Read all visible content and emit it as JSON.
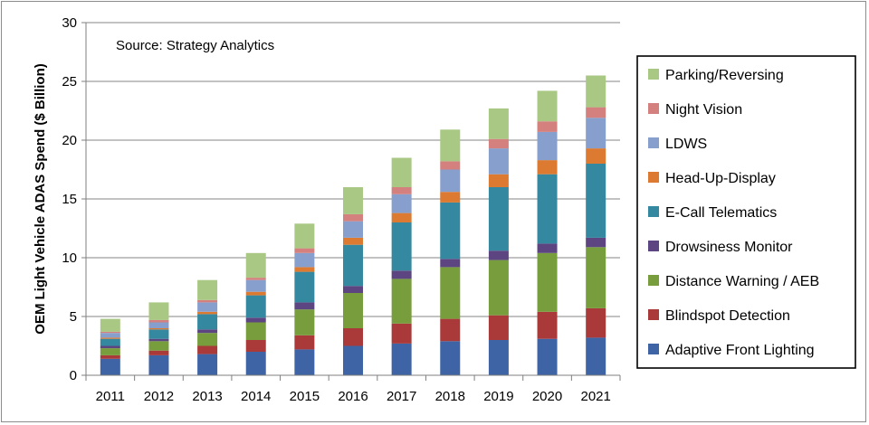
{
  "chart_data": {
    "type": "bar",
    "stacked": true,
    "annotation": "Source: Strategy Analytics",
    "xlabel": "",
    "ylabel": "OEM Light Vehicle ADAS Spend ($ Billion)",
    "ylim": [
      0,
      30
    ],
    "yticks": [
      0,
      5,
      10,
      15,
      20,
      25,
      30
    ],
    "grid": true,
    "legend_position": "right",
    "categories": [
      "2011",
      "2012",
      "2013",
      "2014",
      "2015",
      "2016",
      "2017",
      "2018",
      "2019",
      "2020",
      "2021"
    ],
    "series": [
      {
        "name": "Adaptive Front Lighting",
        "color": "#3e64a6",
        "values": [
          1.4,
          1.7,
          1.8,
          2.0,
          2.2,
          2.5,
          2.7,
          2.9,
          3.0,
          3.1,
          3.2
        ]
      },
      {
        "name": "Blindspot Detection",
        "color": "#a93a39",
        "values": [
          0.3,
          0.4,
          0.7,
          1.0,
          1.2,
          1.5,
          1.7,
          1.9,
          2.1,
          2.3,
          2.5
        ]
      },
      {
        "name": "Distance Warning / AEB",
        "color": "#779d3c",
        "values": [
          0.6,
          0.8,
          1.1,
          1.5,
          2.2,
          3.0,
          3.8,
          4.4,
          4.7,
          5.0,
          5.2
        ]
      },
      {
        "name": "Drowsiness Monitor",
        "color": "#5c4581",
        "values": [
          0.2,
          0.2,
          0.3,
          0.4,
          0.6,
          0.6,
          0.7,
          0.7,
          0.8,
          0.8,
          0.8
        ]
      },
      {
        "name": "E-Call Telematics",
        "color": "#34889f",
        "values": [
          0.6,
          0.8,
          1.3,
          1.9,
          2.6,
          3.5,
          4.1,
          4.8,
          5.4,
          5.9,
          6.3
        ]
      },
      {
        "name": "Head-Up-Display",
        "color": "#db7a30",
        "values": [
          0.1,
          0.1,
          0.2,
          0.3,
          0.4,
          0.6,
          0.8,
          0.9,
          1.1,
          1.2,
          1.3
        ]
      },
      {
        "name": "LDWS",
        "color": "#879fcd",
        "values": [
          0.4,
          0.5,
          0.8,
          1.0,
          1.2,
          1.4,
          1.6,
          1.9,
          2.2,
          2.4,
          2.6
        ]
      },
      {
        "name": "Night Vision",
        "color": "#d3807f",
        "values": [
          0.1,
          0.2,
          0.2,
          0.2,
          0.4,
          0.6,
          0.6,
          0.7,
          0.8,
          0.9,
          0.9
        ]
      },
      {
        "name": "Parking/Reversing",
        "color": "#a8c884",
        "values": [
          1.1,
          1.5,
          1.7,
          2.1,
          2.1,
          2.3,
          2.5,
          2.7,
          2.6,
          2.6,
          2.7
        ]
      }
    ]
  }
}
